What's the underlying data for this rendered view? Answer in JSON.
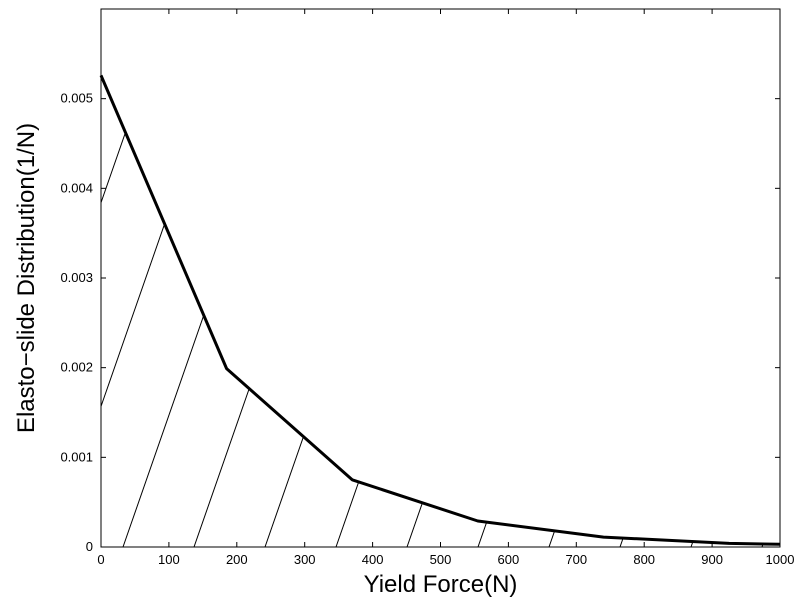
{
  "chart_data": {
    "type": "area",
    "title": "",
    "xlabel": "Yield Force(N)",
    "ylabel": "Elasto−slide Distribution(1/N)",
    "xlim": [
      0,
      1000
    ],
    "ylim": [
      0,
      0.006
    ],
    "x_ticks": [
      0,
      100,
      200,
      300,
      400,
      500,
      600,
      700,
      800,
      900,
      1000
    ],
    "x_tick_labels": [
      "0",
      "100",
      "200",
      "300",
      "400",
      "500",
      "600",
      "700",
      "800",
      "900",
      "1000"
    ],
    "y_ticks": [
      0,
      0.001,
      0.002,
      0.003,
      0.004,
      0.005
    ],
    "y_tick_labels": [
      "0",
      "0.001",
      "0.002",
      "0.003",
      "0.004",
      "0.005"
    ],
    "grid": false,
    "legend": "none",
    "fill": "diagonal hatching under curve",
    "line_color": "#000000",
    "series": [
      {
        "x": [
          0,
          185,
          370,
          555,
          740,
          925,
          1000
        ],
        "values": [
          0.00526,
          0.00199,
          0.00075,
          0.00029,
          0.00011,
          4e-05,
          3e-05
        ]
      }
    ]
  }
}
